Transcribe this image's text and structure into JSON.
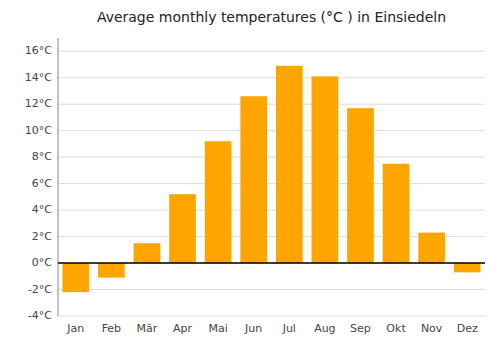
{
  "chart_data": {
    "type": "bar",
    "title": "Average monthly temperatures (°C ) in Einsiedeln",
    "categories": [
      "Jan",
      "Feb",
      "Mär",
      "Apr",
      "Mai",
      "Jun",
      "Jul",
      "Aug",
      "Sep",
      "Okt",
      "Nov",
      "Dez"
    ],
    "values": [
      -2.2,
      -1.1,
      1.5,
      5.2,
      9.2,
      12.6,
      14.9,
      14.1,
      11.7,
      7.5,
      2.3,
      -0.7
    ],
    "color": "#FFA500",
    "ylim": [
      -4,
      17
    ],
    "yticks": [
      {
        "value": -4,
        "label": "-4°C"
      },
      {
        "value": -2,
        "label": "-2°C"
      },
      {
        "value": 0,
        "label": "0°C"
      },
      {
        "value": 2,
        "label": "2°C"
      },
      {
        "value": 4,
        "label": "4°C"
      },
      {
        "value": 6,
        "label": "6°C"
      },
      {
        "value": 8,
        "label": "8°C"
      },
      {
        "value": 10,
        "label": "10°C"
      },
      {
        "value": 12,
        "label": "12°C"
      },
      {
        "value": 14,
        "label": "14°C"
      },
      {
        "value": 16,
        "label": "16°C"
      }
    ],
    "grid": true
  }
}
